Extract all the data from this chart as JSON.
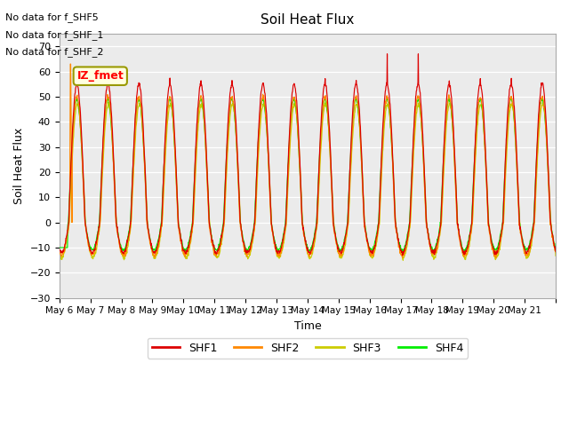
{
  "title": "Soil Heat Flux",
  "ylabel": "Soil Heat Flux",
  "xlabel": "Time",
  "annotations": [
    "No data for f_SHF5",
    "No data for f_SHF_1",
    "No data for f_SHF_2"
  ],
  "watermark": "IZ_fmet",
  "ylim": [
    -30,
    75
  ],
  "yticks": [
    -30,
    -20,
    -10,
    0,
    10,
    20,
    30,
    40,
    50,
    60,
    70
  ],
  "x_labels": [
    "May 6",
    "May 7",
    "May 8",
    "May 9",
    "May 10",
    "May 11",
    "May 12",
    "May 13",
    "May 14",
    "May 15",
    "May 16",
    "May 17",
    "May 18",
    "May 19",
    "May 20",
    "May 21"
  ],
  "colors": {
    "SHF1": "#dd0000",
    "SHF2": "#ff8800",
    "SHF3": "#cccc00",
    "SHF4": "#00ee00"
  },
  "plot_bg": "#ebebeb",
  "n_days": 16,
  "pts_per_day": 96
}
